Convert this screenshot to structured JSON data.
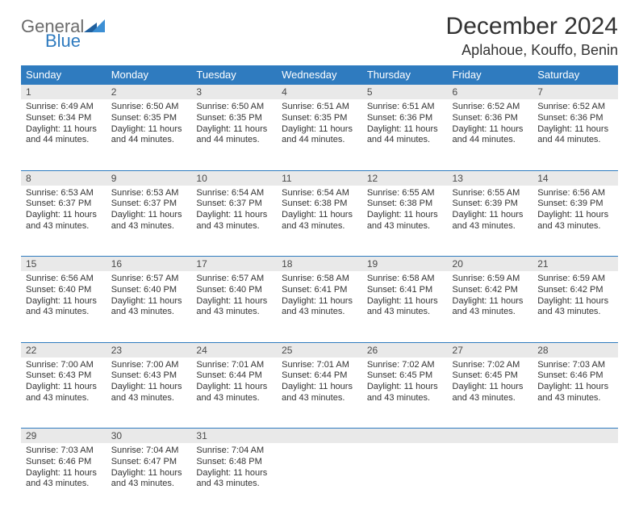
{
  "logo": {
    "general": "General",
    "blue": "Blue"
  },
  "title": "December 2024",
  "location": "Aplahoue, Kouffo, Benin",
  "colors": {
    "header_bg": "#2f7bbf",
    "header_text": "#ffffff",
    "daynum_bg": "#e9e9e9",
    "border": "#2f7bbf",
    "text": "#333333",
    "logo_gray": "#6b6b6b",
    "logo_blue": "#2f7bbf"
  },
  "weekdays": [
    "Sunday",
    "Monday",
    "Tuesday",
    "Wednesday",
    "Thursday",
    "Friday",
    "Saturday"
  ],
  "weeks": [
    [
      {
        "n": "1",
        "sr": "6:49 AM",
        "ss": "6:34 PM",
        "dl": "11 hours and 44 minutes."
      },
      {
        "n": "2",
        "sr": "6:50 AM",
        "ss": "6:35 PM",
        "dl": "11 hours and 44 minutes."
      },
      {
        "n": "3",
        "sr": "6:50 AM",
        "ss": "6:35 PM",
        "dl": "11 hours and 44 minutes."
      },
      {
        "n": "4",
        "sr": "6:51 AM",
        "ss": "6:35 PM",
        "dl": "11 hours and 44 minutes."
      },
      {
        "n": "5",
        "sr": "6:51 AM",
        "ss": "6:36 PM",
        "dl": "11 hours and 44 minutes."
      },
      {
        "n": "6",
        "sr": "6:52 AM",
        "ss": "6:36 PM",
        "dl": "11 hours and 44 minutes."
      },
      {
        "n": "7",
        "sr": "6:52 AM",
        "ss": "6:36 PM",
        "dl": "11 hours and 44 minutes."
      }
    ],
    [
      {
        "n": "8",
        "sr": "6:53 AM",
        "ss": "6:37 PM",
        "dl": "11 hours and 43 minutes."
      },
      {
        "n": "9",
        "sr": "6:53 AM",
        "ss": "6:37 PM",
        "dl": "11 hours and 43 minutes."
      },
      {
        "n": "10",
        "sr": "6:54 AM",
        "ss": "6:37 PM",
        "dl": "11 hours and 43 minutes."
      },
      {
        "n": "11",
        "sr": "6:54 AM",
        "ss": "6:38 PM",
        "dl": "11 hours and 43 minutes."
      },
      {
        "n": "12",
        "sr": "6:55 AM",
        "ss": "6:38 PM",
        "dl": "11 hours and 43 minutes."
      },
      {
        "n": "13",
        "sr": "6:55 AM",
        "ss": "6:39 PM",
        "dl": "11 hours and 43 minutes."
      },
      {
        "n": "14",
        "sr": "6:56 AM",
        "ss": "6:39 PM",
        "dl": "11 hours and 43 minutes."
      }
    ],
    [
      {
        "n": "15",
        "sr": "6:56 AM",
        "ss": "6:40 PM",
        "dl": "11 hours and 43 minutes."
      },
      {
        "n": "16",
        "sr": "6:57 AM",
        "ss": "6:40 PM",
        "dl": "11 hours and 43 minutes."
      },
      {
        "n": "17",
        "sr": "6:57 AM",
        "ss": "6:40 PM",
        "dl": "11 hours and 43 minutes."
      },
      {
        "n": "18",
        "sr": "6:58 AM",
        "ss": "6:41 PM",
        "dl": "11 hours and 43 minutes."
      },
      {
        "n": "19",
        "sr": "6:58 AM",
        "ss": "6:41 PM",
        "dl": "11 hours and 43 minutes."
      },
      {
        "n": "20",
        "sr": "6:59 AM",
        "ss": "6:42 PM",
        "dl": "11 hours and 43 minutes."
      },
      {
        "n": "21",
        "sr": "6:59 AM",
        "ss": "6:42 PM",
        "dl": "11 hours and 43 minutes."
      }
    ],
    [
      {
        "n": "22",
        "sr": "7:00 AM",
        "ss": "6:43 PM",
        "dl": "11 hours and 43 minutes."
      },
      {
        "n": "23",
        "sr": "7:00 AM",
        "ss": "6:43 PM",
        "dl": "11 hours and 43 minutes."
      },
      {
        "n": "24",
        "sr": "7:01 AM",
        "ss": "6:44 PM",
        "dl": "11 hours and 43 minutes."
      },
      {
        "n": "25",
        "sr": "7:01 AM",
        "ss": "6:44 PM",
        "dl": "11 hours and 43 minutes."
      },
      {
        "n": "26",
        "sr": "7:02 AM",
        "ss": "6:45 PM",
        "dl": "11 hours and 43 minutes."
      },
      {
        "n": "27",
        "sr": "7:02 AM",
        "ss": "6:45 PM",
        "dl": "11 hours and 43 minutes."
      },
      {
        "n": "28",
        "sr": "7:03 AM",
        "ss": "6:46 PM",
        "dl": "11 hours and 43 minutes."
      }
    ],
    [
      {
        "n": "29",
        "sr": "7:03 AM",
        "ss": "6:46 PM",
        "dl": "11 hours and 43 minutes."
      },
      {
        "n": "30",
        "sr": "7:04 AM",
        "ss": "6:47 PM",
        "dl": "11 hours and 43 minutes."
      },
      {
        "n": "31",
        "sr": "7:04 AM",
        "ss": "6:48 PM",
        "dl": "11 hours and 43 minutes."
      },
      null,
      null,
      null,
      null
    ]
  ],
  "labels": {
    "sunrise": "Sunrise:",
    "sunset": "Sunset:",
    "daylight": "Daylight:"
  }
}
